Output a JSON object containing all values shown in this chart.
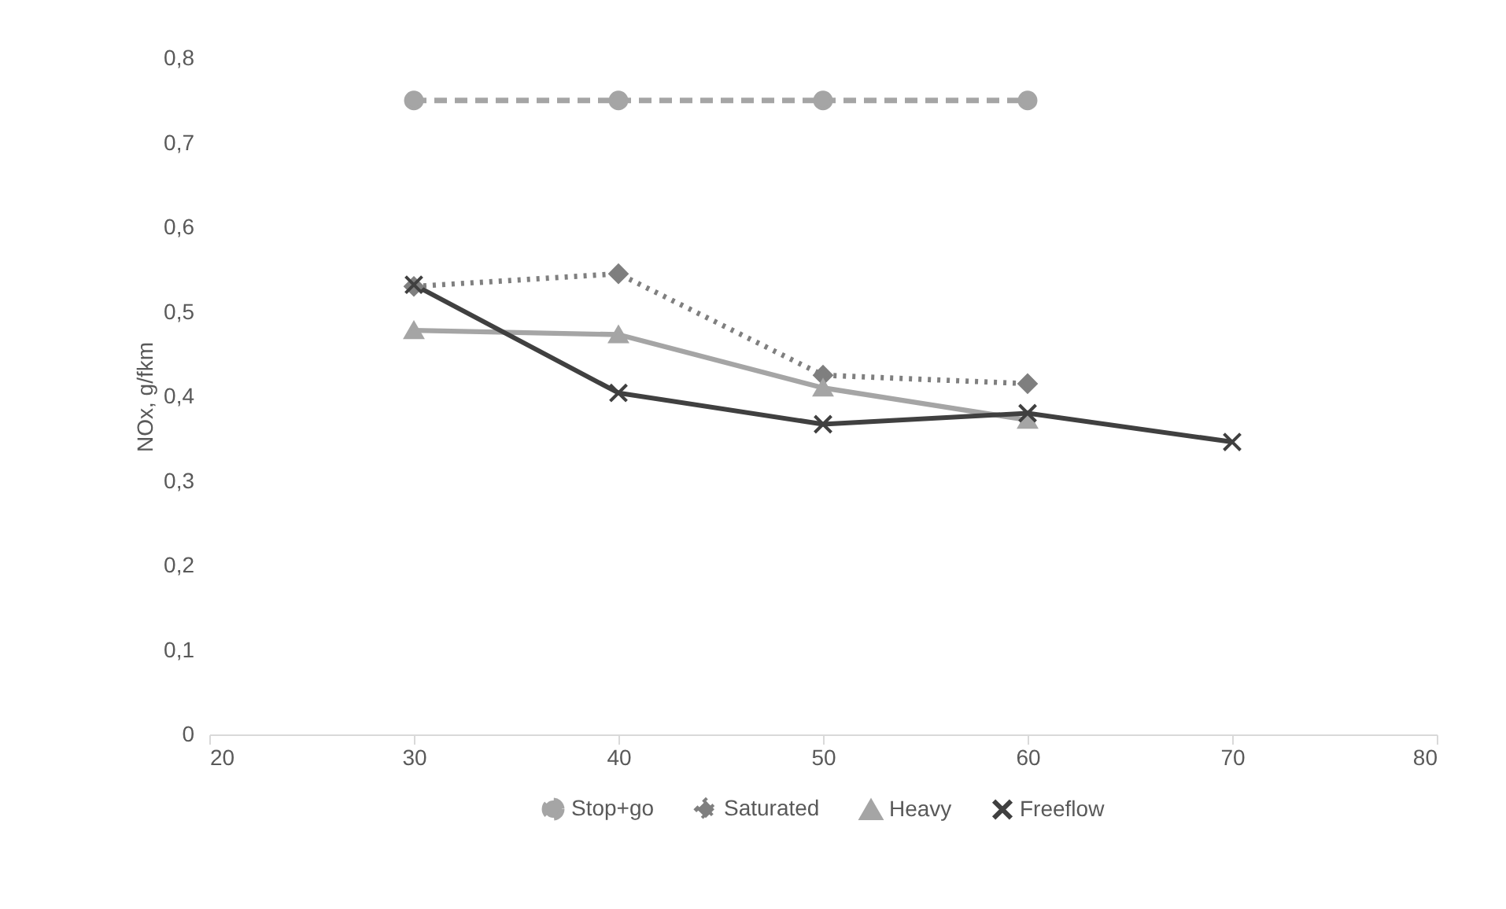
{
  "chart_data": {
    "type": "line",
    "ylabel": "NOx, g/fkm",
    "x": [
      30,
      40,
      50,
      60
    ],
    "series": [
      {
        "name": "Stop+go",
        "color": "#a5a5a5",
        "marker": "circle",
        "line_style": "dashed",
        "values": [
          0.75,
          0.75,
          0.75,
          0.75
        ]
      },
      {
        "name": "Saturated",
        "color": "#7f7f7f",
        "marker": "diamond",
        "line_style": "dotted",
        "values": [
          0.53,
          0.545,
          0.425,
          0.415
        ]
      },
      {
        "name": "Heavy",
        "color": "#a5a5a5",
        "marker": "triangle",
        "line_style": "solid",
        "values": [
          0.478,
          0.473,
          0.41,
          0.372
        ]
      },
      {
        "name": "Freeflow",
        "color": "#404040",
        "marker": "cross",
        "line_style": "solid",
        "x": [
          30,
          40,
          50,
          60,
          70
        ],
        "values": [
          0.532,
          0.404,
          0.367,
          0.38,
          0.346
        ]
      }
    ],
    "xlim": [
      20,
      80
    ],
    "xticks": [
      20,
      30,
      40,
      50,
      60,
      70,
      80
    ],
    "ylim": [
      0,
      0.8
    ],
    "yticks": [
      {
        "value": 0,
        "label": "0"
      },
      {
        "value": 0.1,
        "label": "0,1"
      },
      {
        "value": 0.2,
        "label": "0,2"
      },
      {
        "value": 0.3,
        "label": "0,3"
      },
      {
        "value": 0.4,
        "label": "0,4"
      },
      {
        "value": 0.5,
        "label": "0,5"
      },
      {
        "value": 0.6,
        "label": "0,6"
      },
      {
        "value": 0.7,
        "label": "0,7"
      },
      {
        "value": 0.8,
        "label": "0,8"
      }
    ],
    "grid": false,
    "legend": "bottom"
  }
}
